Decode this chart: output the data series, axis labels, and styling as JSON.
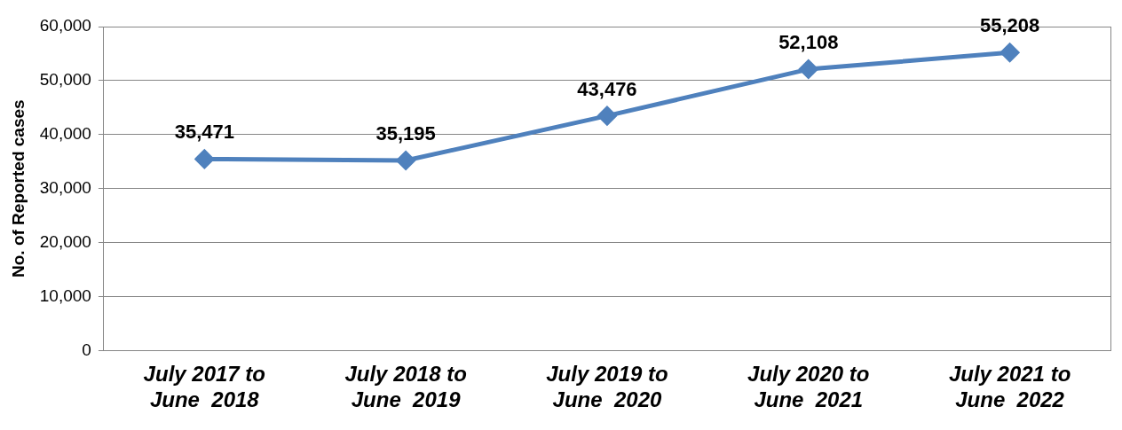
{
  "chart_data": {
    "type": "line",
    "ylabel": "No. of Reported cases",
    "categories": [
      "July 2017 to\nJune  2018",
      "July 2018 to\nJune  2019",
      "July 2019 to\nJune  2020",
      "July 2020 to\nJune  2021",
      "July 2021 to\nJune  2022"
    ],
    "series": [
      {
        "color": "#4f81bd",
        "values": [
          35471,
          35195,
          43476,
          52108,
          55208
        ],
        "value_labels": [
          "35,471",
          "35,195",
          "43,476",
          "52,108",
          "55,208"
        ]
      }
    ],
    "ylim": [
      0,
      60000
    ],
    "yticks": [
      {
        "value": 0,
        "label": "0"
      },
      {
        "value": 10000,
        "label": "10,000"
      },
      {
        "value": 20000,
        "label": "20,000"
      },
      {
        "value": 30000,
        "label": "30,000"
      },
      {
        "value": 40000,
        "label": "40,000"
      },
      {
        "value": 50000,
        "label": "50,000"
      },
      {
        "value": 60000,
        "label": "60,000"
      }
    ],
    "grid": "y",
    "legend": false,
    "marker": "diamond",
    "line_style": "solid"
  }
}
